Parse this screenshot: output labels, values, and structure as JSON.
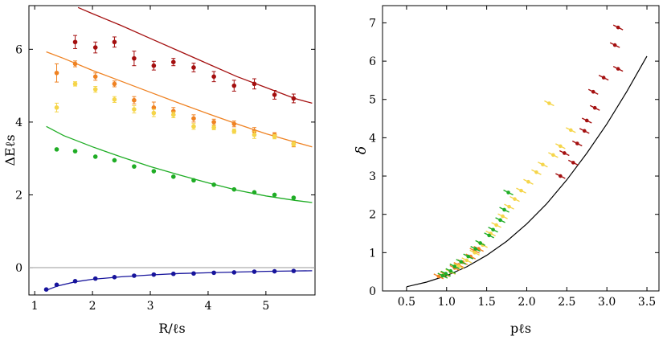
{
  "chart_data": [
    {
      "type": "scatter",
      "xlabel": "R/ℓs",
      "ylabel": "ΔEℓs",
      "xlim": [
        0.9,
        5.85
      ],
      "ylim": [
        -0.75,
        7.2
      ],
      "xticks": [
        1,
        2,
        3,
        4,
        5
      ],
      "yticks": [
        0,
        2,
        4,
        6
      ],
      "reference_line_y": 0,
      "series": [
        {
          "color": "#a40f0f",
          "points": [
            [
              1.7,
              6.2
            ],
            [
              2.05,
              6.05
            ],
            [
              2.38,
              6.2
            ],
            [
              2.72,
              5.75
            ],
            [
              3.06,
              5.55
            ],
            [
              3.4,
              5.65
            ],
            [
              3.75,
              5.5
            ],
            [
              4.1,
              5.25
            ],
            [
              4.45,
              5.0
            ],
            [
              4.8,
              5.05
            ],
            [
              5.15,
              4.75
            ],
            [
              5.48,
              4.65
            ]
          ],
          "errors": [
            0.18,
            0.15,
            0.14,
            0.2,
            0.12,
            0.1,
            0.12,
            0.14,
            0.15,
            0.14,
            0.12,
            0.12
          ],
          "curve": [
            [
              1.75,
              7.15
            ],
            [
              2.0,
              6.98
            ],
            [
              2.5,
              6.65
            ],
            [
              3.0,
              6.3
            ],
            [
              3.5,
              5.95
            ],
            [
              4.0,
              5.6
            ],
            [
              4.5,
              5.25
            ],
            [
              5.0,
              4.95
            ],
            [
              5.5,
              4.65
            ],
            [
              5.8,
              4.52
            ]
          ]
        },
        {
          "color": "#ef8222",
          "points": [
            [
              1.38,
              5.35
            ],
            [
              1.7,
              5.6
            ],
            [
              2.05,
              5.25
            ],
            [
              2.38,
              5.05
            ],
            [
              2.72,
              4.6
            ],
            [
              3.06,
              4.4
            ],
            [
              3.4,
              4.3
            ],
            [
              3.75,
              4.1
            ],
            [
              4.1,
              4.0
            ],
            [
              4.45,
              3.95
            ],
            [
              4.8,
              3.75
            ],
            [
              5.15,
              3.65
            ],
            [
              5.48,
              3.4
            ]
          ],
          "errors": [
            0.25,
            0.08,
            0.1,
            0.08,
            0.1,
            0.15,
            0.1,
            0.1,
            0.08,
            0.08,
            0.1,
            0.06,
            0.08
          ],
          "curve": [
            [
              1.2,
              5.93
            ],
            [
              1.5,
              5.75
            ],
            [
              2.0,
              5.42
            ],
            [
              2.5,
              5.12
            ],
            [
              3.0,
              4.82
            ],
            [
              3.5,
              4.52
            ],
            [
              4.0,
              4.23
            ],
            [
              4.5,
              3.95
            ],
            [
              5.0,
              3.68
            ],
            [
              5.5,
              3.45
            ],
            [
              5.8,
              3.32
            ]
          ]
        },
        {
          "color": "#f5d54a",
          "points": [
            [
              1.38,
              4.4
            ],
            [
              1.7,
              5.05
            ],
            [
              2.05,
              4.9
            ],
            [
              2.38,
              4.62
            ],
            [
              2.72,
              4.35
            ],
            [
              3.06,
              4.25
            ],
            [
              3.4,
              4.2
            ],
            [
              3.75,
              3.88
            ],
            [
              4.1,
              3.85
            ],
            [
              4.45,
              3.75
            ],
            [
              4.8,
              3.65
            ],
            [
              5.15,
              3.6
            ],
            [
              5.48,
              3.4
            ]
          ],
          "errors": [
            0.12,
            0.06,
            0.08,
            0.08,
            0.1,
            0.1,
            0.08,
            0.08,
            0.06,
            0.06,
            0.1,
            0.06,
            0.06
          ]
        },
        {
          "color": "#1fad25",
          "points": [
            [
              1.38,
              3.25
            ],
            [
              1.7,
              3.2
            ],
            [
              2.05,
              3.05
            ],
            [
              2.38,
              2.95
            ],
            [
              2.72,
              2.78
            ],
            [
              3.06,
              2.65
            ],
            [
              3.4,
              2.5
            ],
            [
              3.75,
              2.4
            ],
            [
              4.1,
              2.28
            ],
            [
              4.45,
              2.15
            ],
            [
              4.8,
              2.07
            ],
            [
              5.15,
              2.0
            ],
            [
              5.48,
              1.92
            ]
          ],
          "curve": [
            [
              1.2,
              3.88
            ],
            [
              1.5,
              3.63
            ],
            [
              2.0,
              3.32
            ],
            [
              2.5,
              3.04
            ],
            [
              3.0,
              2.78
            ],
            [
              3.5,
              2.55
            ],
            [
              4.0,
              2.33
            ],
            [
              4.5,
              2.13
            ],
            [
              5.0,
              1.97
            ],
            [
              5.5,
              1.85
            ],
            [
              5.8,
              1.79
            ]
          ]
        },
        {
          "color": "#17149c",
          "points": [
            [
              1.2,
              -0.6
            ],
            [
              1.38,
              -0.47
            ],
            [
              1.7,
              -0.37
            ],
            [
              2.05,
              -0.3
            ],
            [
              2.38,
              -0.26
            ],
            [
              2.72,
              -0.22
            ],
            [
              3.06,
              -0.19
            ],
            [
              3.4,
              -0.17
            ],
            [
              3.75,
              -0.16
            ],
            [
              4.1,
              -0.14
            ],
            [
              4.45,
              -0.13
            ],
            [
              4.8,
              -0.11
            ],
            [
              5.15,
              -0.1
            ],
            [
              5.48,
              -0.09
            ]
          ],
          "curve": [
            [
              1.2,
              -0.62
            ],
            [
              1.4,
              -0.5
            ],
            [
              1.7,
              -0.39
            ],
            [
              2.0,
              -0.32
            ],
            [
              2.5,
              -0.25
            ],
            [
              3.0,
              -0.2
            ],
            [
              3.5,
              -0.16
            ],
            [
              4.0,
              -0.14
            ],
            [
              4.5,
              -0.12
            ],
            [
              5.0,
              -0.1
            ],
            [
              5.5,
              -0.09
            ],
            [
              5.8,
              -0.085
            ]
          ]
        }
      ]
    },
    {
      "type": "scatter",
      "xlabel": "pℓs",
      "ylabel": "δ",
      "xlim": [
        0.2,
        3.65
      ],
      "ylim": [
        0,
        7.45
      ],
      "xticks": [
        0.5,
        1.0,
        1.5,
        2.0,
        2.5,
        3.0,
        3.5
      ],
      "xticklabels": [
        "0.5",
        "1.0",
        "1.5",
        "2.0",
        "2.5",
        "3.0",
        "3.5"
      ],
      "yticks": [
        0,
        1,
        2,
        3,
        4,
        5,
        6,
        7
      ],
      "curve": [
        [
          0.5,
          0.11
        ],
        [
          0.75,
          0.23
        ],
        [
          1.0,
          0.4
        ],
        [
          1.25,
          0.63
        ],
        [
          1.5,
          0.93
        ],
        [
          1.75,
          1.3
        ],
        [
          2.0,
          1.75
        ],
        [
          2.25,
          2.28
        ],
        [
          2.5,
          2.9
        ],
        [
          2.75,
          3.6
        ],
        [
          3.0,
          4.36
        ],
        [
          3.25,
          5.21
        ],
        [
          3.5,
          6.13
        ]
      ],
      "series": [
        {
          "color": "#a40f0f",
          "points": [
            [
              3.14,
              6.88
            ],
            [
              3.1,
              6.42
            ],
            [
              3.14,
              5.8
            ],
            [
              2.96,
              5.57
            ],
            [
              2.83,
              5.2
            ],
            [
              2.85,
              4.78
            ],
            [
              2.75,
              4.45
            ],
            [
              2.72,
              4.18
            ],
            [
              2.63,
              3.85
            ],
            [
              2.47,
              3.6
            ],
            [
              2.58,
              3.35
            ],
            [
              2.42,
              3.0
            ]
          ]
        },
        {
          "color": "#ef8222",
          "points": [
            [
              0.9,
              0.38
            ],
            [
              0.98,
              0.44
            ],
            [
              1.05,
              0.5
            ],
            [
              1.1,
              0.6
            ],
            [
              1.15,
              0.68
            ],
            [
              1.2,
              0.75
            ],
            [
              1.3,
              0.9
            ],
            [
              1.35,
              1.05
            ],
            [
              1.4,
              1.1
            ]
          ]
        },
        {
          "color": "#f5d54a",
          "points": [
            [
              2.28,
              4.9
            ],
            [
              2.55,
              4.2
            ],
            [
              2.42,
              3.78
            ],
            [
              2.33,
              3.55
            ],
            [
              2.2,
              3.3
            ],
            [
              2.12,
              3.1
            ],
            [
              2.02,
              2.85
            ],
            [
              1.93,
              2.62
            ],
            [
              1.85,
              2.4
            ],
            [
              1.78,
              2.2
            ],
            [
              1.7,
              1.95
            ],
            [
              1.62,
              1.72
            ],
            [
              1.55,
              1.5
            ],
            [
              1.45,
              1.2
            ],
            [
              1.35,
              1.0
            ],
            [
              1.25,
              0.8
            ],
            [
              1.15,
              0.65
            ],
            [
              1.05,
              0.5
            ],
            [
              0.95,
              0.4
            ]
          ]
        },
        {
          "color": "#1fad25",
          "points": [
            [
              1.77,
              2.57
            ],
            [
              1.72,
              2.12
            ],
            [
              1.67,
              1.85
            ],
            [
              1.58,
              1.6
            ],
            [
              1.53,
              1.45
            ],
            [
              1.42,
              1.25
            ],
            [
              1.36,
              1.1
            ],
            [
              1.27,
              0.9
            ],
            [
              1.18,
              0.76
            ],
            [
              1.1,
              0.64
            ],
            [
              1.05,
              0.52
            ],
            [
              0.99,
              0.45
            ],
            [
              0.95,
              0.4
            ]
          ]
        }
      ]
    }
  ]
}
